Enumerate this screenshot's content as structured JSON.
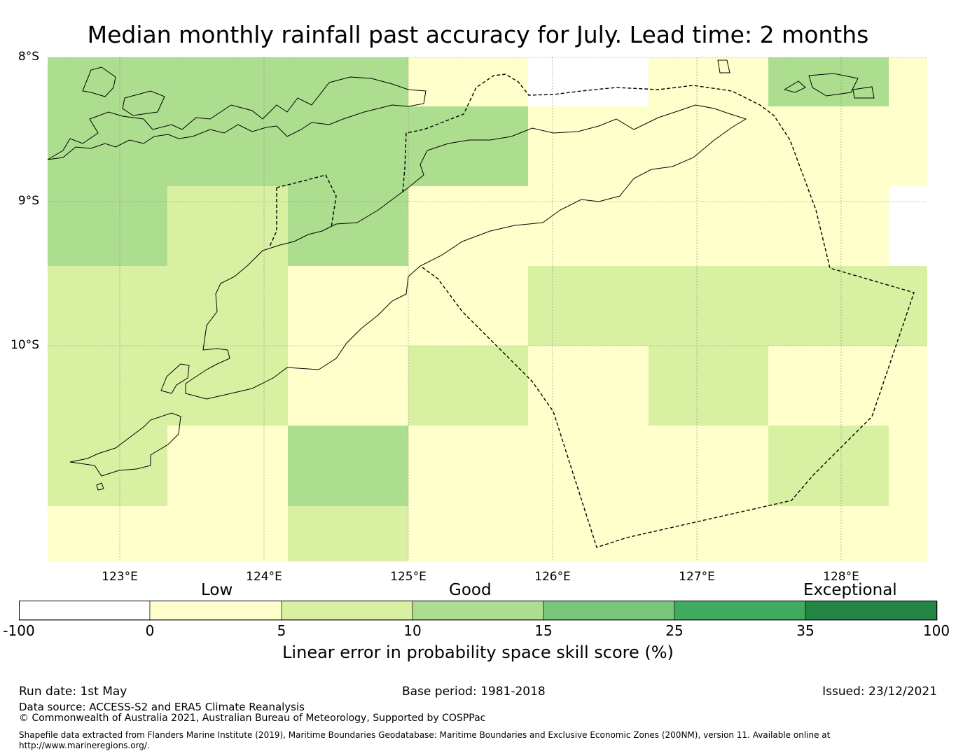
{
  "title": "Median monthly rainfall past accuracy for July. Lead time: 2 months",
  "map": {
    "lat_labels": [
      "8°S",
      "9°S",
      "10°S"
    ],
    "lon_labels": [
      "123°E",
      "124°E",
      "125°E",
      "126°E",
      "127°E",
      "128°E"
    ],
    "category_colors": {
      "none": "#ffffff",
      "0-5": "#ffffcc",
      "5-10": "#d9f0a3",
      "10-15": "#addd8e",
      "15-25": "#78c679",
      "25-35": "#41ab5d",
      "35-100": "#238443"
    },
    "grid_skill_categories": [
      [
        "10-15",
        "10-15",
        "10-15",
        "0-5",
        "none",
        "0-5",
        "10-15",
        "0-5"
      ],
      [
        "10-15",
        "10-15",
        "10-15",
        "10-15",
        "0-5",
        "0-5",
        "0-5",
        "0-5"
      ],
      [
        "10-15",
        "5-10",
        "10-15",
        "0-5",
        "0-5",
        "0-5",
        "0-5",
        "none"
      ],
      [
        "5-10",
        "5-10",
        "0-5",
        "0-5",
        "5-10",
        "5-10",
        "5-10",
        "5-10"
      ],
      [
        "5-10",
        "5-10",
        "0-5",
        "5-10",
        "0-5",
        "5-10",
        "0-5",
        "0-5"
      ],
      [
        "5-10",
        "0-5",
        "10-15",
        "0-5",
        "0-5",
        "0-5",
        "5-10",
        "0-5"
      ],
      [
        "0-5",
        "0-5",
        "5-10",
        "0-5",
        "0-5",
        "0-5",
        "0-5",
        "0-5"
      ]
    ]
  },
  "colorbar": {
    "category_labels": [
      "Low",
      "Good",
      "Exceptional"
    ],
    "ticks": [
      "-100",
      "0",
      "5",
      "10",
      "15",
      "25",
      "35",
      "100"
    ],
    "colors": [
      "#ffffff",
      "#ffffcc",
      "#d9f0a3",
      "#addd8e",
      "#78c679",
      "#41ab5d",
      "#238443"
    ],
    "title": "Linear error in probability space skill score (%)"
  },
  "footer": {
    "run_date": "Run date: 1st May",
    "base_period": "Base period: 1981-2018",
    "issued": "Issued: 23/12/2021",
    "data_source": "Data source: ACCESS-S2 and ERA5 Climate Reanalysis",
    "copyright": "© Commonwealth of Australia 2021, Australian Bureau of Meteorology, Supported by COSPPac",
    "shapefile": "Shapefile data extracted from Flanders Marine Institute (2019), Maritime Boundaries Geodatabase: Maritime Boundaries and Exclusive Economic Zones (200NM), version 11. Available online at http://www.marineregions.org/."
  }
}
